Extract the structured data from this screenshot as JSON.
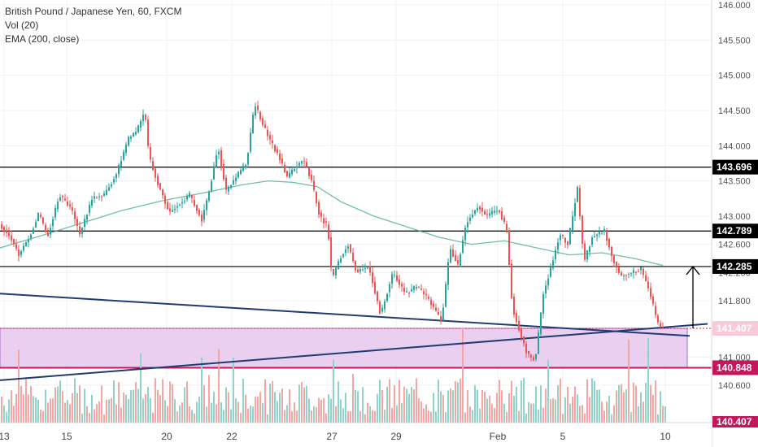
{
  "legend": {
    "symbol_line": "British Pound / Japanese Yen, 60, FXCM",
    "volume_line": "Vol (20)",
    "ema_line": "EMA (200, close)"
  },
  "colors": {
    "up": "#26a69a",
    "down": "#ef5350",
    "volume_up": "#8fd3c9",
    "volume_down": "#f5a5a2",
    "ema": "#4caf8a",
    "trendline": "#1f3b70",
    "zone_fill": "#e6c7ee",
    "zone_border": "#c2185b",
    "level_line": "#000000",
    "label_bg": "#000000",
    "label_text": "#ffffff",
    "dotted_level": "#c2185b"
  },
  "chart_data": {
    "type": "candlestick",
    "title": "British Pound / Japanese Yen, 60, FXCM",
    "y_axis": {
      "range": [
        140.3,
        146.05
      ],
      "ticks": [
        "140.600",
        "141.000",
        "141.800",
        "142.200",
        "142.600",
        "143.000",
        "143.500",
        "144.000",
        "144.500",
        "145.000",
        "145.500",
        "146.000"
      ]
    },
    "x_axis": {
      "tick_labels": [
        "13",
        "15",
        "20",
        "22",
        "27",
        "29",
        "Feb",
        "5",
        "10"
      ]
    },
    "horizontal_levels": [
      {
        "value": 143.696,
        "label": "143.696"
      },
      {
        "value": 142.789,
        "label": "142.789"
      },
      {
        "value": 142.285,
        "label": "142.285"
      }
    ],
    "zone": {
      "top": 141.407,
      "bottom": 140.848,
      "top_label": "141.407",
      "bottom_label": "140.848"
    },
    "partially_visible_label": "140.407",
    "price_path": [
      [
        0,
        142.9
      ],
      [
        15,
        142.7
      ],
      [
        25,
        142.45
      ],
      [
        40,
        142.75
      ],
      [
        50,
        143.05
      ],
      [
        60,
        142.7
      ],
      [
        75,
        143.3
      ],
      [
        90,
        143.1
      ],
      [
        100,
        142.75
      ],
      [
        115,
        143.25
      ],
      [
        130,
        143.3
      ],
      [
        145,
        143.6
      ],
      [
        160,
        144.1
      ],
      [
        170,
        144.2
      ],
      [
        180,
        144.5
      ],
      [
        185,
        143.85
      ],
      [
        195,
        143.5
      ],
      [
        210,
        143.05
      ],
      [
        220,
        143.15
      ],
      [
        235,
        143.3
      ],
      [
        250,
        142.95
      ],
      [
        260,
        143.4
      ],
      [
        270,
        144.0
      ],
      [
        280,
        143.35
      ],
      [
        295,
        143.6
      ],
      [
        305,
        143.75
      ],
      [
        315,
        144.6
      ],
      [
        325,
        144.3
      ],
      [
        335,
        144.05
      ],
      [
        345,
        143.85
      ],
      [
        355,
        143.55
      ],
      [
        365,
        143.7
      ],
      [
        375,
        143.8
      ],
      [
        385,
        143.5
      ],
      [
        395,
        143.0
      ],
      [
        405,
        142.85
      ],
      [
        410,
        142.1
      ],
      [
        420,
        142.4
      ],
      [
        430,
        142.6
      ],
      [
        440,
        142.2
      ],
      [
        455,
        142.3
      ],
      [
        470,
        141.6
      ],
      [
        485,
        142.2
      ],
      [
        500,
        141.9
      ],
      [
        515,
        142.0
      ],
      [
        530,
        141.8
      ],
      [
        545,
        141.5
      ],
      [
        555,
        142.55
      ],
      [
        565,
        142.3
      ],
      [
        575,
        142.9
      ],
      [
        590,
        143.15
      ],
      [
        600,
        143.0
      ],
      [
        615,
        143.1
      ],
      [
        625,
        142.8
      ],
      [
        632,
        141.7
      ],
      [
        640,
        141.4
      ],
      [
        650,
        141.05
      ],
      [
        660,
        140.95
      ],
      [
        670,
        141.9
      ],
      [
        680,
        142.3
      ],
      [
        690,
        142.75
      ],
      [
        700,
        142.6
      ],
      [
        712,
        143.4
      ],
      [
        720,
        142.35
      ],
      [
        730,
        142.7
      ],
      [
        745,
        142.8
      ],
      [
        755,
        142.4
      ],
      [
        765,
        142.15
      ],
      [
        780,
        142.2
      ],
      [
        790,
        142.25
      ],
      [
        800,
        141.95
      ],
      [
        810,
        141.5
      ],
      [
        815,
        141.407
      ]
    ],
    "ema_path": [
      [
        0,
        142.55
      ],
      [
        50,
        142.72
      ],
      [
        100,
        142.9
      ],
      [
        150,
        143.08
      ],
      [
        200,
        143.22
      ],
      [
        250,
        143.33
      ],
      [
        300,
        143.45
      ],
      [
        330,
        143.5
      ],
      [
        360,
        143.48
      ],
      [
        390,
        143.42
      ],
      [
        420,
        143.2
      ],
      [
        460,
        143.0
      ],
      [
        500,
        142.85
      ],
      [
        540,
        142.7
      ],
      [
        580,
        142.6
      ],
      [
        620,
        142.65
      ],
      [
        660,
        142.55
      ],
      [
        700,
        142.45
      ],
      [
        740,
        142.48
      ],
      [
        780,
        142.4
      ],
      [
        815,
        142.3
      ]
    ],
    "trendlines": [
      {
        "name": "descending",
        "from": [
          0,
          141.9
        ],
        "to": [
          848,
          141.3
        ]
      },
      {
        "name": "ascending",
        "from": [
          0,
          140.67
        ],
        "to": [
          870,
          141.47
        ]
      }
    ],
    "projection_arrow": {
      "x": 852,
      "from": 141.407,
      "to": 142.285
    }
  }
}
